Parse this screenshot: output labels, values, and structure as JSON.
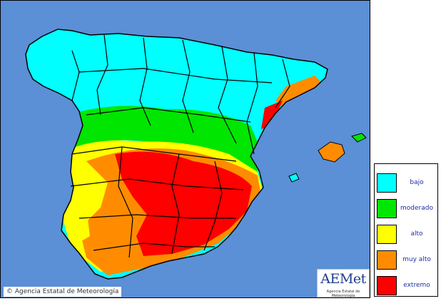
{
  "map": {
    "credit": "© Agencia Estatal de Meteorología",
    "colors": {
      "sea": "#5b8fd6",
      "border": "#000000"
    },
    "legend": [
      {
        "label": "bajo",
        "color": "#00ffff"
      },
      {
        "label": "moderado",
        "color": "#00e600"
      },
      {
        "label": "alto",
        "color": "#ffff00"
      },
      {
        "label": "muy alto",
        "color": "#ff8c00"
      },
      {
        "label": "extremo",
        "color": "#ff0000"
      }
    ]
  },
  "logo": {
    "name": "AEMet",
    "subtitle": "Agencia Estatal de Meteorología"
  }
}
